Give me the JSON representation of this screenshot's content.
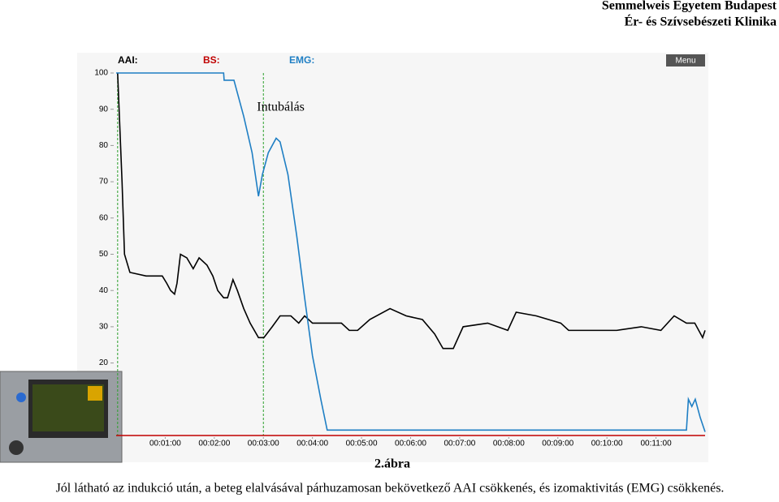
{
  "header": {
    "line1": "Semmelweis Egyetem Budapest",
    "line2": "Ér- és Szívsebészeti Klinika"
  },
  "menu": "Menu",
  "chart_data": {
    "type": "line",
    "annotation": "Intubálás",
    "vlines": [
      0.03,
      3
    ],
    "vline_color": "#2ca02c",
    "xlim": [
      0,
      12
    ],
    "ylim": [
      0,
      100
    ],
    "xticks": [
      {
        "value": 1,
        "label": "00:01:00"
      },
      {
        "value": 2,
        "label": "00:02:00"
      },
      {
        "value": 3,
        "label": "00:03:00"
      },
      {
        "value": 4,
        "label": "00:04:00"
      },
      {
        "value": 5,
        "label": "00:05:00"
      },
      {
        "value": 6,
        "label": "00:06:00"
      },
      {
        "value": 7,
        "label": "00:07:00"
      },
      {
        "value": 8,
        "label": "00:08:00"
      },
      {
        "value": 9,
        "label": "00:09:00"
      },
      {
        "value": 10,
        "label": "00:10:00"
      },
      {
        "value": 11,
        "label": "00:11:00"
      }
    ],
    "yticks": [
      20,
      30,
      40,
      50,
      60,
      70,
      80,
      90,
      100
    ],
    "series": [
      {
        "name": "AAI:",
        "color": "#000000",
        "x": [
          0.03,
          0.12,
          0.17,
          0.28,
          0.61,
          0.94,
          1.03,
          1.11,
          1.19,
          1.24,
          1.31,
          1.44,
          1.57,
          1.69,
          1.85,
          1.97,
          2.07,
          2.19,
          2.27,
          2.38,
          2.47,
          2.6,
          2.73,
          2.9,
          3.01,
          3.18,
          3.34,
          3.56,
          3.72,
          3.84,
          4.0,
          4.59,
          4.75,
          4.92,
          5.17,
          5.58,
          5.91,
          6.24,
          6.49,
          6.66,
          6.87,
          7.07,
          7.57,
          7.98,
          8.15,
          8.56,
          9.06,
          9.22,
          10.2,
          10.7,
          11.1,
          11.37,
          11.62,
          11.79,
          11.95,
          12.0
        ],
        "values": [
          100,
          70,
          50,
          45,
          44,
          44,
          42,
          40,
          39,
          42,
          50,
          49,
          46,
          49,
          47,
          44,
          40,
          38,
          38,
          43,
          40,
          35,
          31,
          27,
          27,
          30,
          33,
          33,
          31,
          33,
          31,
          31,
          29,
          29,
          32,
          35,
          33,
          32,
          28,
          24,
          24,
          30,
          31,
          29,
          34,
          33,
          31,
          29,
          29,
          30,
          29,
          33,
          31,
          31,
          27,
          29
        ]
      },
      {
        "name": "BS:",
        "color": "#c00000",
        "x": [
          0,
          12
        ],
        "values": [
          0,
          0
        ]
      },
      {
        "name": "EMG:",
        "color": "#1f7fc4",
        "x": [
          0.0,
          2.19,
          2.2,
          2.4,
          2.6,
          2.77,
          2.9,
          2.98,
          3.1,
          3.26,
          3.34,
          3.5,
          3.68,
          3.84,
          4.0,
          4.17,
          4.3,
          11.62,
          11.66,
          11.73,
          11.8,
          11.9,
          12.0
        ],
        "values": [
          100,
          100,
          98,
          98,
          88,
          78,
          66,
          72,
          78,
          82,
          81,
          72,
          55,
          38,
          22,
          10,
          1.5,
          1.5,
          10,
          8,
          10,
          5,
          1
        ]
      }
    ]
  },
  "caption": "2.ábra",
  "text": "Jól látható az indukció után, a beteg elalvásával párhuzamosan bekövetkező AAI csökkenés, és izomaktivitás (EMG) csökkenés."
}
